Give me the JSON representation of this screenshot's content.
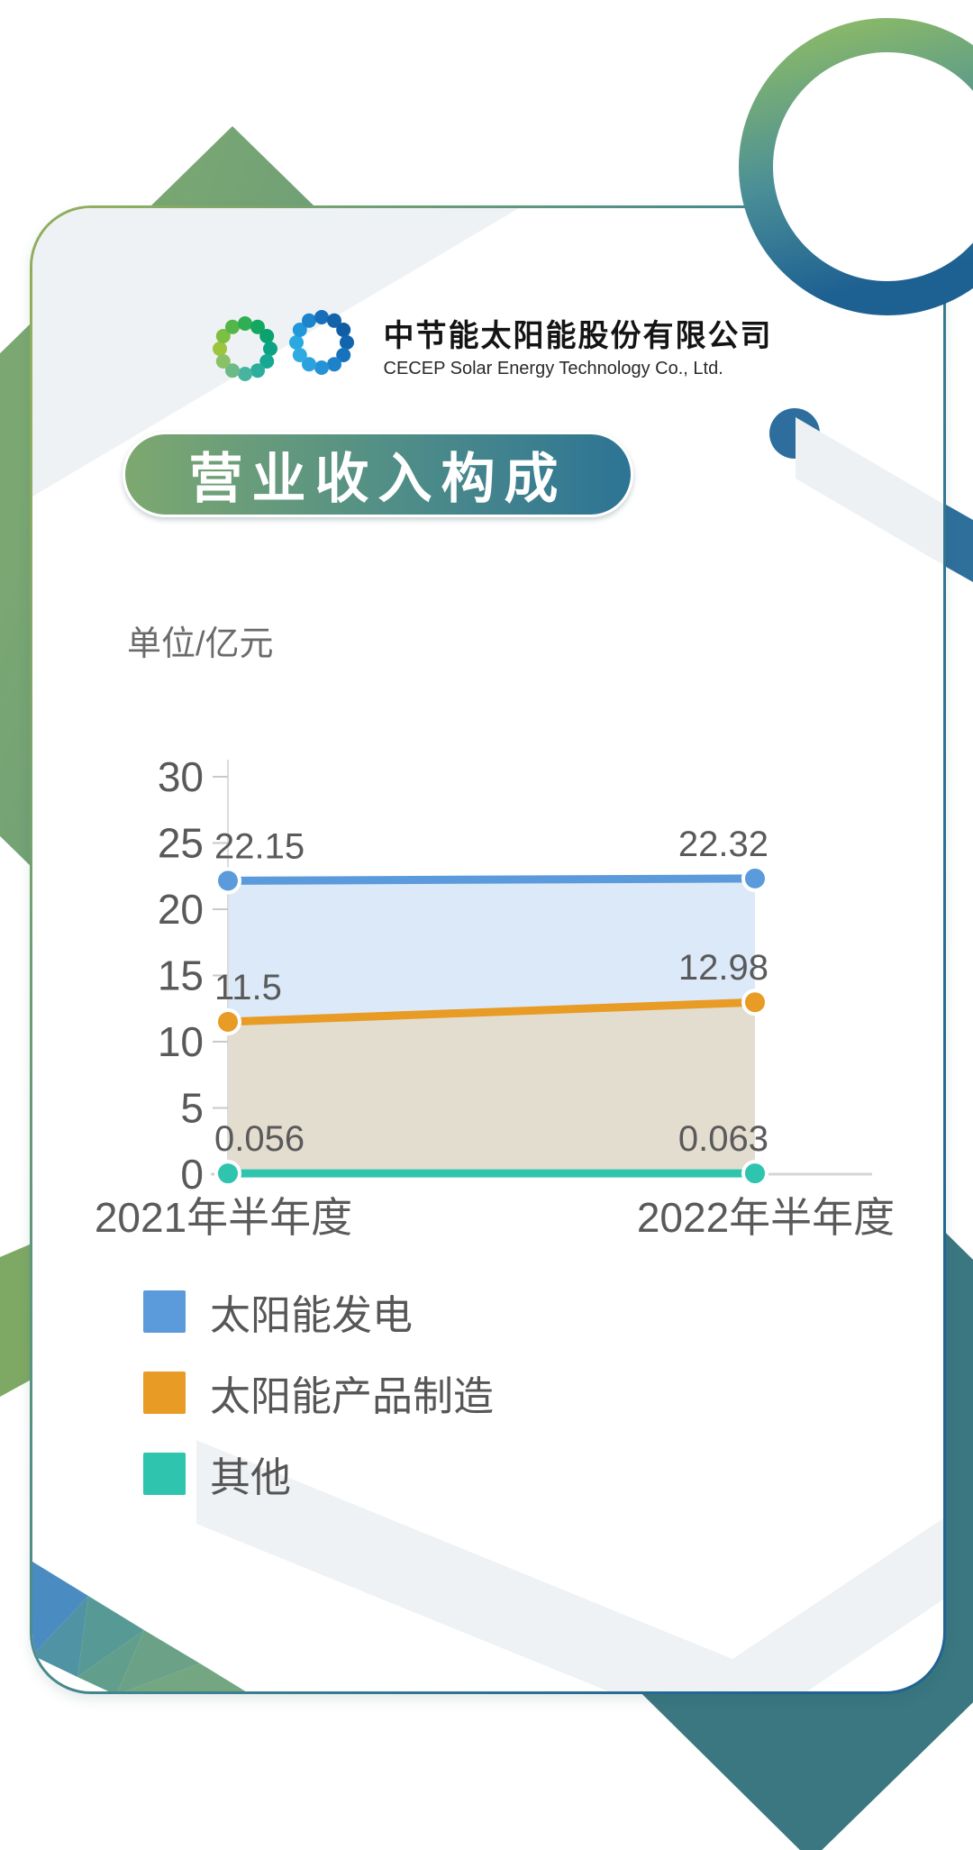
{
  "header": {
    "logo_icon": "double-dot-ring-logo",
    "company_name_zh": "中节能太阳能股份有限公司",
    "company_name_en": "CECEP Solar Energy Technology Co., Ltd.",
    "logo_left_ring_colors": [
      "#9bc53d",
      "#7dbf42",
      "#54b54a",
      "#2fae53",
      "#14a75f",
      "#0aa26e",
      "#0ba383",
      "#16a893",
      "#2bae9b",
      "#47b4a0",
      "#6cba87",
      "#8ac167"
    ],
    "logo_right_ring_colors": [
      "#2aa9e0",
      "#2198d9",
      "#1c84cc",
      "#176fba",
      "#1263aa",
      "#0f5ea3",
      "#1265ad",
      "#1772bc",
      "#1d82ca",
      "#2492d5",
      "#2ba2de",
      "#2fabe2"
    ]
  },
  "title_banner": {
    "text": "营业收入构成"
  },
  "unit_label": "单位/亿元",
  "chart_data": {
    "type": "line",
    "title": "营业收入构成",
    "unit": "单位/亿元",
    "categories": [
      "2021年半年度",
      "2022年半年度"
    ],
    "series": [
      {
        "name": "太阳能发电",
        "values": [
          22.15,
          22.32
        ],
        "labels": [
          "22.15",
          "22.32"
        ],
        "color": "#5b9bdc",
        "fill": "#dce9f8"
      },
      {
        "name": "太阳能产品制造",
        "values": [
          11.5,
          12.98
        ],
        "labels": [
          "11.5",
          "12.98"
        ],
        "color": "#e89b25",
        "fill": "#e3ddd0"
      },
      {
        "name": "其他",
        "values": [
          0.056,
          0.063
        ],
        "labels": [
          "0.056",
          "0.063"
        ],
        "color": "#2ec4ae",
        "fill": null
      }
    ],
    "ylim": [
      0,
      30
    ],
    "ytick_step": 5,
    "grid": false,
    "legend_position": "bottom-left"
  },
  "colors": {
    "accent_green": "#7ba872",
    "accent_teal": "#3a7780",
    "accent_blue": "#2f6f9b",
    "axis_text": "#595959",
    "label_text": "#5a5a5a"
  }
}
